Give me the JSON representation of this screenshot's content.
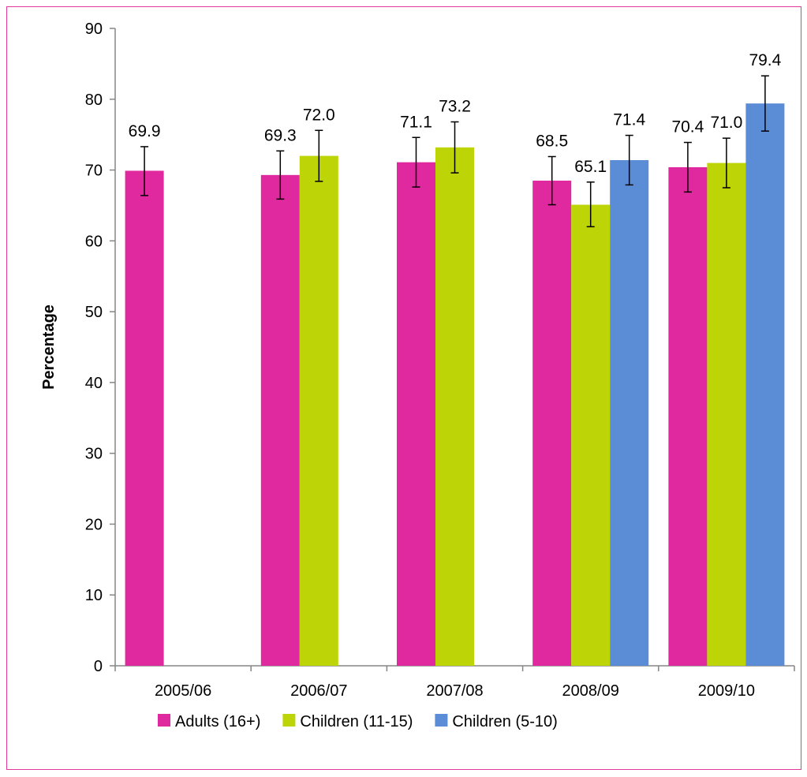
{
  "chart_data": {
    "type": "bar",
    "ylabel": "Percentage",
    "ylim": [
      0,
      90
    ],
    "yticks": [
      0,
      10,
      20,
      30,
      40,
      50,
      60,
      70,
      80,
      90
    ],
    "categories": [
      "2005/06",
      "2006/07",
      "2007/08",
      "2008/09",
      "2009/10"
    ],
    "series": [
      {
        "name": "Adults (16+)",
        "color": "#e0289f",
        "values": [
          69.9,
          69.3,
          71.1,
          68.5,
          70.4
        ],
        "labels": [
          "69.9",
          "69.3",
          "71.1",
          "68.5",
          "70.4"
        ],
        "error_low": [
          66.4,
          65.9,
          67.6,
          65.1,
          66.9
        ],
        "error_high": [
          73.3,
          72.7,
          74.6,
          71.9,
          73.9
        ]
      },
      {
        "name": "Children (11-15)",
        "color": "#bdd407",
        "values": [
          null,
          72.0,
          73.2,
          65.1,
          71.0
        ],
        "labels": [
          null,
          "72.0",
          "73.2",
          "65.1",
          "71.0"
        ],
        "error_low": [
          null,
          68.4,
          69.6,
          62.0,
          67.5
        ],
        "error_high": [
          null,
          75.6,
          76.8,
          68.3,
          74.5
        ]
      },
      {
        "name": "Children (5-10)",
        "color": "#5b8cd6",
        "values": [
          null,
          null,
          null,
          71.4,
          79.4
        ],
        "labels": [
          null,
          null,
          null,
          "71.4",
          "79.4"
        ],
        "error_low": [
          null,
          null,
          null,
          67.9,
          75.5
        ],
        "error_high": [
          null,
          null,
          null,
          74.9,
          83.3
        ]
      }
    ],
    "legend_position": "bottom",
    "grid": false
  }
}
